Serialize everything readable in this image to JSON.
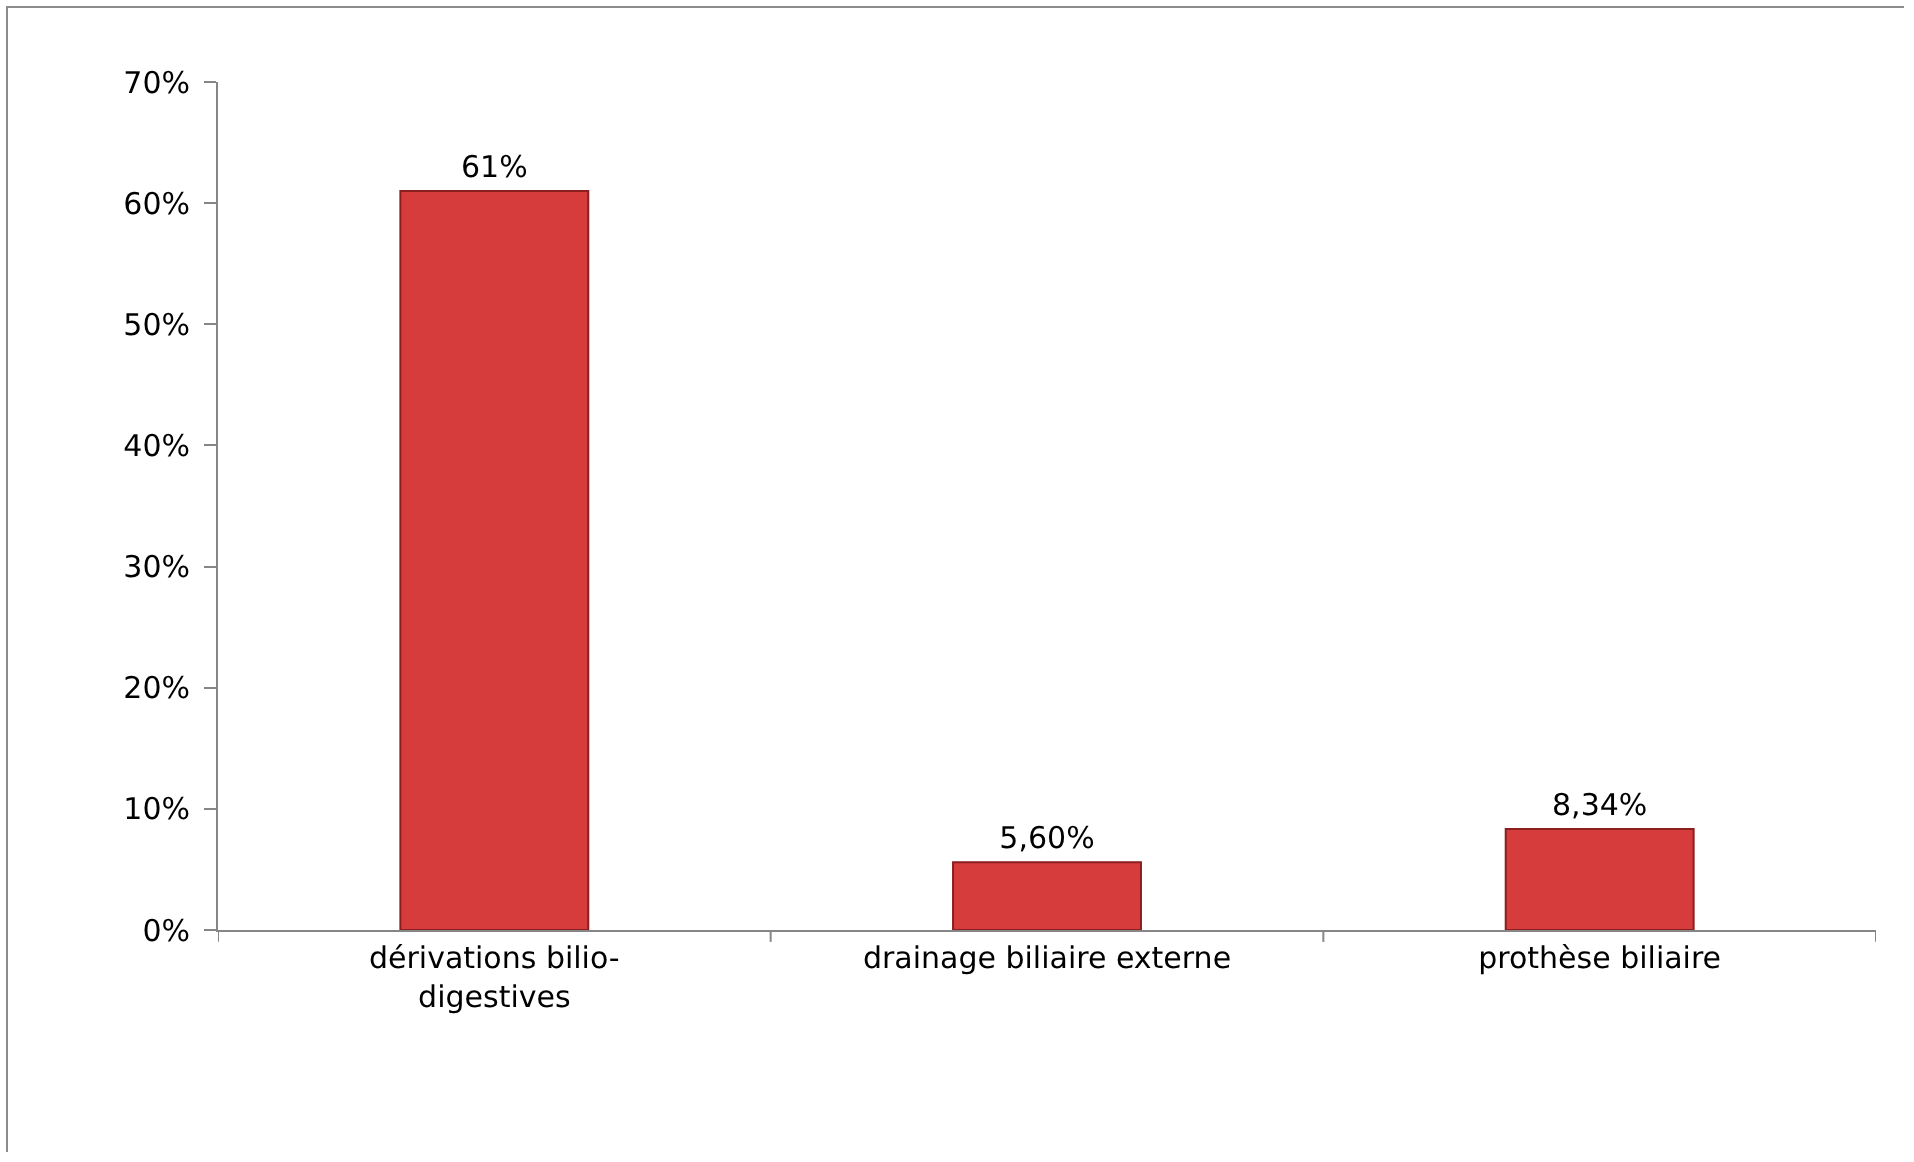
{
  "chart_data": {
    "type": "bar",
    "categories": [
      "dérivations bilio-digestives",
      "drainage biliaire externe",
      "prothèse biliaire"
    ],
    "values": [
      61,
      5.6,
      8.34
    ],
    "value_labels": [
      "61%",
      "5,60%",
      "8,34%"
    ],
    "color": "#d63c3c",
    "ylim": [
      0,
      70
    ],
    "yticks": [
      {
        "value": 0,
        "label": "0%"
      },
      {
        "value": 10,
        "label": "10%"
      },
      {
        "value": 20,
        "label": "20%"
      },
      {
        "value": 30,
        "label": "30%"
      },
      {
        "value": 40,
        "label": "40%"
      },
      {
        "value": 50,
        "label": "50%"
      },
      {
        "value": 60,
        "label": "60%"
      },
      {
        "value": 70,
        "label": "70%"
      }
    ],
    "grid": false,
    "legend": false
  }
}
